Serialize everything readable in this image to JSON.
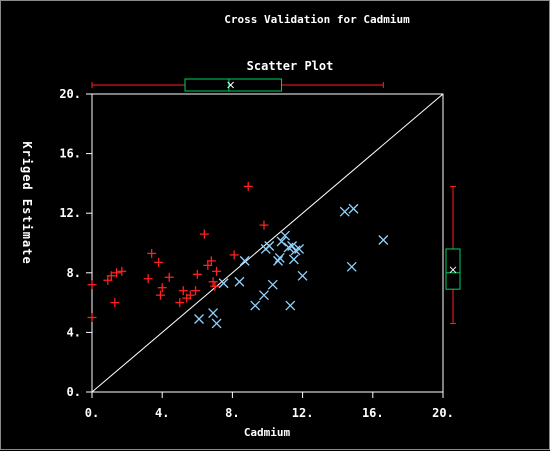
{
  "window": {
    "title": "Cross Validation for Cadmium"
  },
  "chart_data": {
    "type": "scatter",
    "title": "Scatter Plot",
    "xlabel": "Cadmium",
    "ylabel": "Kriged Estimate",
    "xlim": [
      0,
      20
    ],
    "ylim": [
      0,
      20
    ],
    "x_ticks": [
      "0.",
      "4.",
      "8.",
      "12.",
      "16.",
      "20."
    ],
    "y_ticks": [
      "0.",
      "4.",
      "8.",
      "12.",
      "16.",
      "20."
    ],
    "reference_line": "y = x",
    "colors": {
      "under_estimated": "#ff2020",
      "over_estimated": "#8fd3ff",
      "axes": "#ffffff",
      "whisker": "#ff2020",
      "box": "#00d060",
      "background": "#000000"
    },
    "series": [
      {
        "marker": "+",
        "color": "#ff2020",
        "points": [
          [
            0,
            7.2
          ],
          [
            0,
            5.0
          ],
          [
            0.9,
            7.5
          ],
          [
            1.1,
            7.8
          ],
          [
            1.3,
            6.0
          ],
          [
            1.4,
            8.0
          ],
          [
            1.7,
            8.1
          ],
          [
            3.2,
            7.6
          ],
          [
            3.4,
            9.3
          ],
          [
            3.8,
            8.7
          ],
          [
            3.9,
            6.5
          ],
          [
            4.0,
            7.0
          ],
          [
            4.4,
            7.7
          ],
          [
            5.0,
            6.0
          ],
          [
            5.2,
            6.8
          ],
          [
            5.4,
            6.3
          ],
          [
            5.6,
            6.5
          ],
          [
            5.9,
            6.8
          ],
          [
            6.0,
            7.9
          ],
          [
            6.4,
            10.6
          ],
          [
            6.6,
            8.5
          ],
          [
            6.8,
            8.8
          ],
          [
            6.9,
            7.4
          ],
          [
            7.0,
            7.1
          ],
          [
            7.1,
            8.1
          ],
          [
            8.1,
            9.2
          ],
          [
            8.9,
            13.8
          ],
          [
            9.8,
            11.2
          ]
        ]
      },
      {
        "marker": "x",
        "color": "#8fd3ff",
        "points": [
          [
            6.1,
            4.9
          ],
          [
            6.9,
            5.3
          ],
          [
            7.1,
            4.6
          ],
          [
            7.5,
            7.3
          ],
          [
            8.4,
            7.4
          ],
          [
            8.7,
            8.8
          ],
          [
            9.3,
            5.8
          ],
          [
            9.8,
            6.5
          ],
          [
            9.9,
            9.6
          ],
          [
            10.1,
            9.8
          ],
          [
            10.3,
            7.2
          ],
          [
            10.6,
            8.8
          ],
          [
            10.7,
            9.0
          ],
          [
            10.8,
            10.1
          ],
          [
            11.0,
            10.5
          ],
          [
            11.2,
            9.7
          ],
          [
            11.3,
            5.8
          ],
          [
            11.4,
            9.8
          ],
          [
            11.5,
            8.9
          ],
          [
            11.6,
            9.5
          ],
          [
            11.8,
            9.6
          ],
          [
            12.0,
            7.8
          ],
          [
            14.4,
            12.1
          ],
          [
            14.8,
            8.4
          ],
          [
            14.9,
            12.3
          ],
          [
            16.6,
            10.2
          ]
        ]
      }
    ],
    "x_boxplot": {
      "whisker_low": 0,
      "q1": 5.3,
      "median": 7.8,
      "q3": 10.8,
      "whisker_high": 16.6,
      "mean": 7.9
    },
    "y_boxplot": {
      "whisker_low": 4.6,
      "q1": 6.9,
      "median": 8.0,
      "q3": 9.6,
      "whisker_high": 13.8,
      "mean": 8.2
    }
  }
}
